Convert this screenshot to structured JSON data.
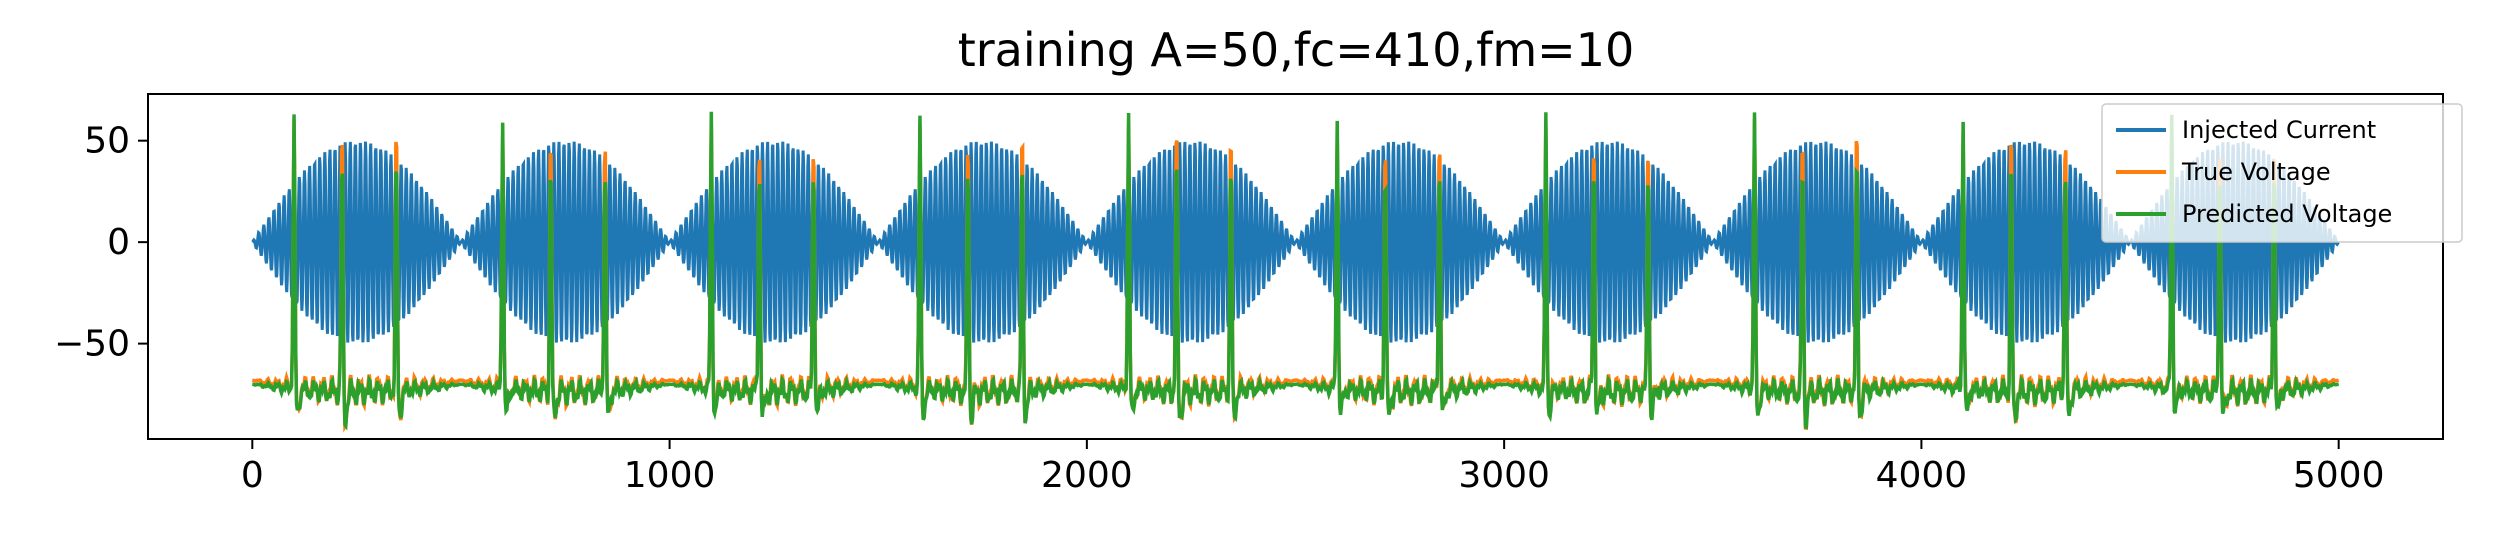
{
  "chart_data": {
    "type": "line",
    "title": "training A=50,fc=410,fm=10",
    "xlabel": "",
    "ylabel": "",
    "xlim": [
      -250,
      5250
    ],
    "ylim": [
      -97,
      73
    ],
    "xticks": [
      0,
      1000,
      2000,
      3000,
      4000,
      5000
    ],
    "xtick_labels": [
      "0",
      "1000",
      "2000",
      "3000",
      "4000",
      "5000"
    ],
    "yticks": [
      50,
      0,
      -50
    ],
    "ytick_labels": [
      "50",
      "0",
      "−50"
    ],
    "grid": false,
    "legend_position": "upper right",
    "x_range": [
      0,
      5000
    ],
    "series": [
      {
        "name": "Injected Current",
        "color": "#1f77b4",
        "signal": "amplitude-modulated sinusoid",
        "amplitude": 50,
        "carrier_cycles_per_envelope": 41,
        "envelope_period": 500,
        "envelope_peaks_at": [
          250,
          750,
          1250,
          1750,
          2250,
          2750,
          3250,
          3750,
          4250,
          4750
        ],
        "envelope_zeros_at": [
          0,
          500,
          1000,
          1500,
          2000,
          2500,
          3000,
          3500,
          4000,
          4500,
          5000
        ]
      },
      {
        "name": "True Voltage",
        "color": "#ff7f0e",
        "baseline": -68,
        "trough_min": -87,
        "spike_peak": 60,
        "spike_times": [
          100,
          215,
          345,
          600,
          715,
          845,
          1100,
          1215,
          1345,
          1600,
          1715,
          1845,
          2100,
          2215,
          2345,
          2600,
          2715,
          2845,
          3100,
          3215,
          3345,
          3600,
          3715,
          3845,
          4100,
          4215,
          4345,
          4600,
          4715,
          4845
        ]
      },
      {
        "name": "Predicted Voltage",
        "color": "#2ca02c",
        "baseline": -70,
        "trough_min": -84,
        "spike_peaks": [
          63,
          45,
          44,
          65,
          44,
          44,
          65,
          45,
          44,
          64,
          44,
          44,
          65,
          44,
          44,
          65,
          44,
          44,
          65,
          45,
          44,
          64,
          44,
          44,
          64,
          44,
          44,
          65,
          45,
          44
        ],
        "spike_times": [
          100,
          215,
          345,
          600,
          715,
          845,
          1100,
          1215,
          1345,
          1600,
          1715,
          1845,
          2100,
          2215,
          2345,
          2600,
          2715,
          2845,
          3100,
          3215,
          3345,
          3600,
          3715,
          3845,
          4100,
          4215,
          4345,
          4600,
          4715,
          4845
        ]
      }
    ]
  }
}
